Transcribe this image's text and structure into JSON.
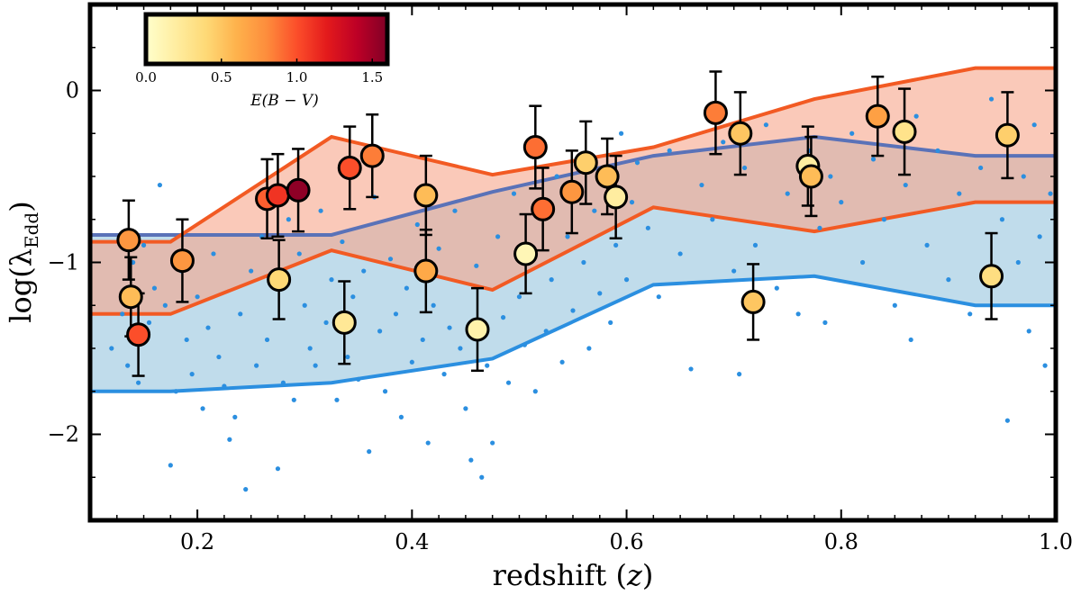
{
  "chart_data": {
    "type": "scatter",
    "xlabel_main": "redshift (",
    "xlabel_var": "z",
    "xlabel_close": ")",
    "ylabel_main": "log(λ",
    "ylabel_sub": "Edd",
    "ylabel_close": ")",
    "xlim": [
      0.1,
      1.0
    ],
    "ylim": [
      -2.5,
      0.5
    ],
    "x_ticks": [
      0.2,
      0.4,
      0.6,
      0.8,
      1.0
    ],
    "x_tick_labels": [
      "0.2",
      "0.4",
      "0.6",
      "0.8",
      "1.0"
    ],
    "y_ticks": [
      0,
      -1,
      -2
    ],
    "y_tick_labels": [
      "0",
      "−1",
      "−2"
    ],
    "colorbar": {
      "label": "E(B − V)",
      "range": [
        0.0,
        1.6
      ],
      "ticks": [
        0.0,
        0.5,
        1.0,
        1.5
      ],
      "tick_labels": [
        "0.0",
        "0.5",
        "1.0",
        "1.5"
      ],
      "colormap": [
        "#ffffcc",
        "#ffeda0",
        "#fed976",
        "#feb24c",
        "#fd8d3c",
        "#fc4e2a",
        "#e31a1c",
        "#bd0026",
        "#800026"
      ]
    },
    "bands": [
      {
        "name": "blue band",
        "fill": "#9ecae1",
        "edge": "#2b8fe0",
        "mid_line": "#5a72b8",
        "x": [
          0.1,
          0.175,
          0.325,
          0.475,
          0.625,
          0.775,
          0.925,
          1.0
        ],
        "upper": [
          -0.84,
          -0.84,
          -0.84,
          -0.59,
          -0.38,
          -0.27,
          -0.38,
          -0.38
        ],
        "lower": [
          -1.75,
          -1.75,
          -1.7,
          -1.56,
          -1.13,
          -1.08,
          -1.25,
          -1.25
        ]
      },
      {
        "name": "red band",
        "fill": "#f7a58a",
        "edge": "#f25a23",
        "x": [
          0.1,
          0.175,
          0.325,
          0.475,
          0.625,
          0.775,
          0.925,
          1.0
        ],
        "upper": [
          -0.88,
          -0.88,
          -0.27,
          -0.49,
          -0.33,
          -0.05,
          0.13,
          0.13
        ],
        "lower": [
          -1.3,
          -1.3,
          -0.93,
          -1.16,
          -0.68,
          -0.82,
          -0.65,
          -0.65
        ]
      }
    ],
    "background_points": [
      [
        0.12,
        -1.5
      ],
      [
        0.13,
        -1.3
      ],
      [
        0.135,
        -1.6
      ],
      [
        0.14,
        -1.0
      ],
      [
        0.145,
        -1.7
      ],
      [
        0.15,
        -0.9
      ],
      [
        0.155,
        -1.35
      ],
      [
        0.16,
        -1.15
      ],
      [
        0.165,
        -0.55
      ],
      [
        0.17,
        -1.25
      ],
      [
        0.175,
        -2.18
      ],
      [
        0.18,
        -1.75
      ],
      [
        0.185,
        -1.05
      ],
      [
        0.19,
        -1.45
      ],
      [
        0.195,
        -1.65
      ],
      [
        0.2,
        -1.2
      ],
      [
        0.205,
        -1.85
      ],
      [
        0.21,
        -1.38
      ],
      [
        0.215,
        -0.95
      ],
      [
        0.22,
        -1.55
      ],
      [
        0.225,
        -1.72
      ],
      [
        0.23,
        -2.03
      ],
      [
        0.235,
        -1.9
      ],
      [
        0.24,
        -1.3
      ],
      [
        0.245,
        -2.32
      ],
      [
        0.25,
        -1.05
      ],
      [
        0.255,
        -1.6
      ],
      [
        0.26,
        -0.85
      ],
      [
        0.265,
        -1.45
      ],
      [
        0.27,
        -1.12
      ],
      [
        0.275,
        -2.2
      ],
      [
        0.28,
        -1.7
      ],
      [
        0.285,
        -0.75
      ],
      [
        0.29,
        -1.8
      ],
      [
        0.295,
        -0.95
      ],
      [
        0.3,
        -1.25
      ],
      [
        0.305,
        -1.5
      ],
      [
        0.31,
        -1.6
      ],
      [
        0.315,
        -0.7
      ],
      [
        0.32,
        -1.35
      ],
      [
        0.325,
        -1.1
      ],
      [
        0.33,
        -1.8
      ],
      [
        0.335,
        -0.88
      ],
      [
        0.34,
        -1.55
      ],
      [
        0.345,
        -1.2
      ],
      [
        0.35,
        -1.68
      ],
      [
        0.355,
        -1.05
      ],
      [
        0.36,
        -2.1
      ],
      [
        0.365,
        -0.62
      ],
      [
        0.37,
        -1.4
      ],
      [
        0.375,
        -1.75
      ],
      [
        0.38,
        -0.98
      ],
      [
        0.385,
        -1.3
      ],
      [
        0.39,
        -1.9
      ],
      [
        0.395,
        -1.15
      ],
      [
        0.4,
        -1.58
      ],
      [
        0.405,
        -0.78
      ],
      [
        0.41,
        -1.45
      ],
      [
        0.415,
        -2.05
      ],
      [
        0.42,
        -1.25
      ],
      [
        0.425,
        -0.92
      ],
      [
        0.43,
        -1.65
      ],
      [
        0.435,
        -1.38
      ],
      [
        0.44,
        -0.7
      ],
      [
        0.445,
        -1.5
      ],
      [
        0.45,
        -1.85
      ],
      [
        0.455,
        -2.15
      ],
      [
        0.46,
        -1.02
      ],
      [
        0.465,
        -2.25
      ],
      [
        0.47,
        -1.6
      ],
      [
        0.475,
        -2.05
      ],
      [
        0.48,
        -0.85
      ],
      [
        0.485,
        -1.32
      ],
      [
        0.49,
        -1.7
      ],
      [
        0.495,
        -0.6
      ],
      [
        0.5,
        -1.2
      ],
      [
        0.505,
        -1.48
      ],
      [
        0.51,
        -0.95
      ],
      [
        0.515,
        -1.75
      ],
      [
        0.52,
        -0.72
      ],
      [
        0.525,
        -1.4
      ],
      [
        0.53,
        -1.1
      ],
      [
        0.535,
        -0.5
      ],
      [
        0.54,
        -1.58
      ],
      [
        0.545,
        -0.85
      ],
      [
        0.55,
        -1.28
      ],
      [
        0.555,
        -0.45
      ],
      [
        0.56,
        -1.0
      ],
      [
        0.565,
        -1.5
      ],
      [
        0.57,
        -0.7
      ],
      [
        0.575,
        -1.18
      ],
      [
        0.58,
        -0.55
      ],
      [
        0.585,
        -1.35
      ],
      [
        0.59,
        -0.9
      ],
      [
        0.595,
        -0.25
      ],
      [
        0.6,
        -1.1
      ],
      [
        0.605,
        -0.65
      ],
      [
        0.61,
        -0.42
      ],
      [
        0.62,
        -0.8
      ],
      [
        0.63,
        -1.2
      ],
      [
        0.64,
        -0.35
      ],
      [
        0.65,
        -0.95
      ],
      [
        0.66,
        -1.62
      ],
      [
        0.67,
        -0.55
      ],
      [
        0.68,
        -0.75
      ],
      [
        0.69,
        -0.3
      ],
      [
        0.7,
        -1.05
      ],
      [
        0.705,
        -1.65
      ],
      [
        0.71,
        -0.45
      ],
      [
        0.72,
        -0.9
      ],
      [
        0.73,
        -0.2
      ],
      [
        0.74,
        -1.15
      ],
      [
        0.75,
        -0.6
      ],
      [
        0.76,
        -1.3
      ],
      [
        0.77,
        -0.35
      ],
      [
        0.78,
        -0.8
      ],
      [
        0.785,
        -1.35
      ],
      [
        0.79,
        -0.5
      ],
      [
        0.8,
        -0.65
      ],
      [
        0.81,
        -0.25
      ],
      [
        0.82,
        -1.0
      ],
      [
        0.83,
        -0.4
      ],
      [
        0.84,
        -0.75
      ],
      [
        0.85,
        -1.25
      ],
      [
        0.86,
        -0.55
      ],
      [
        0.865,
        -1.45
      ],
      [
        0.87,
        -0.15
      ],
      [
        0.88,
        -0.9
      ],
      [
        0.89,
        -0.35
      ],
      [
        0.9,
        -1.1
      ],
      [
        0.91,
        -0.6
      ],
      [
        0.92,
        -1.3
      ],
      [
        0.93,
        -0.45
      ],
      [
        0.94,
        -0.05
      ],
      [
        0.95,
        -0.75
      ],
      [
        0.955,
        -1.92
      ],
      [
        0.96,
        -0.3
      ],
      [
        0.965,
        -1.0
      ],
      [
        0.97,
        -0.5
      ],
      [
        0.975,
        -1.4
      ],
      [
        0.98,
        -0.2
      ],
      [
        0.985,
        -0.85
      ],
      [
        0.99,
        -1.6
      ],
      [
        0.995,
        -0.6
      ]
    ],
    "points": [
      {
        "x": 0.136,
        "y": -0.87,
        "err": 0.23,
        "ebv": 0.75
      },
      {
        "x": 0.138,
        "y": -1.2,
        "err": 0.23,
        "ebv": 0.55
      },
      {
        "x": 0.145,
        "y": -1.42,
        "err": 0.24,
        "ebv": 1.0
      },
      {
        "x": 0.186,
        "y": -0.99,
        "err": 0.24,
        "ebv": 0.75
      },
      {
        "x": 0.265,
        "y": -0.63,
        "err": 0.23,
        "ebv": 0.95
      },
      {
        "x": 0.275,
        "y": -0.61,
        "err": 0.24,
        "ebv": 1.1
      },
      {
        "x": 0.276,
        "y": -1.1,
        "err": 0.23,
        "ebv": 0.4
      },
      {
        "x": 0.294,
        "y": -0.58,
        "err": 0.24,
        "ebv": 1.55
      },
      {
        "x": 0.337,
        "y": -1.35,
        "err": 0.24,
        "ebv": 0.25
      },
      {
        "x": 0.342,
        "y": -0.45,
        "err": 0.24,
        "ebv": 1.0
      },
      {
        "x": 0.363,
        "y": -0.38,
        "err": 0.24,
        "ebv": 0.85
      },
      {
        "x": 0.413,
        "y": -0.61,
        "err": 0.23,
        "ebv": 0.55
      },
      {
        "x": 0.413,
        "y": -1.05,
        "err": 0.24,
        "ebv": 0.65
      },
      {
        "x": 0.461,
        "y": -1.39,
        "err": 0.24,
        "ebv": 0.15
      },
      {
        "x": 0.506,
        "y": -0.95,
        "err": 0.23,
        "ebv": 0.1
      },
      {
        "x": 0.515,
        "y": -0.33,
        "err": 0.24,
        "ebv": 0.9
      },
      {
        "x": 0.522,
        "y": -0.69,
        "err": 0.24,
        "ebv": 0.9
      },
      {
        "x": 0.549,
        "y": -0.59,
        "err": 0.24,
        "ebv": 0.75
      },
      {
        "x": 0.562,
        "y": -0.42,
        "err": 0.24,
        "ebv": 0.45
      },
      {
        "x": 0.582,
        "y": -0.5,
        "err": 0.22,
        "ebv": 0.55
      },
      {
        "x": 0.59,
        "y": -0.62,
        "err": 0.24,
        "ebv": 0.2
      },
      {
        "x": 0.683,
        "y": -0.13,
        "err": 0.24,
        "ebv": 0.85
      },
      {
        "x": 0.706,
        "y": -0.25,
        "err": 0.24,
        "ebv": 0.5
      },
      {
        "x": 0.718,
        "y": -1.23,
        "err": 0.22,
        "ebv": 0.5
      },
      {
        "x": 0.769,
        "y": -0.44,
        "err": 0.23,
        "ebv": 0.2
      },
      {
        "x": 0.772,
        "y": -0.5,
        "err": 0.23,
        "ebv": 0.55
      },
      {
        "x": 0.834,
        "y": -0.15,
        "err": 0.23,
        "ebv": 0.7
      },
      {
        "x": 0.859,
        "y": -0.24,
        "err": 0.25,
        "ebv": 0.3
      },
      {
        "x": 0.94,
        "y": -1.08,
        "err": 0.25,
        "ebv": 0.35
      },
      {
        "x": 0.955,
        "y": -0.26,
        "err": 0.25,
        "ebv": 0.45
      }
    ]
  }
}
